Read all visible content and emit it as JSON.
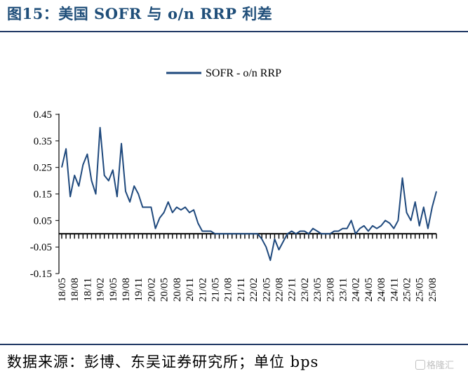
{
  "figure": {
    "title": "图15：美国 SOFR 与 o/n RRP 利差",
    "source": "数据来源：彭博、东吴证券研究所；单位 bps",
    "watermark": "格隆汇"
  },
  "colors": {
    "line": "#1f497d",
    "rule": "#1f3864",
    "title": "#1f4e79"
  },
  "chart_data": {
    "type": "line",
    "title": "",
    "xlabel": "",
    "ylabel": "",
    "legend_position": "top-center",
    "grid": false,
    "y_ticks": [
      "0.45",
      "0.35",
      "0.25",
      "0.15",
      "0.05",
      "-0.05",
      "-0.15"
    ],
    "ylim": [
      -0.15,
      0.45
    ],
    "x_tick_labels": [
      "18/05",
      "18/08",
      "18/11",
      "19/02",
      "19/05",
      "19/08",
      "19/11",
      "20/02",
      "20/05",
      "20/08",
      "20/11",
      "21/02",
      "21/05",
      "21/08",
      "21/11",
      "22/02",
      "22/05",
      "22/08",
      "22/11",
      "23/02",
      "23/05",
      "23/08",
      "23/11",
      "24/02",
      "24/05",
      "24/08",
      "24/11",
      "25/02",
      "25/05",
      "25/08"
    ],
    "series": [
      {
        "name": "SOFR - o/n RRP",
        "x": [
          "18/05",
          "18/06",
          "18/07",
          "18/08",
          "18/09",
          "18/10",
          "18/11",
          "18/12",
          "19/01",
          "19/02",
          "19/03",
          "19/04",
          "19/05",
          "19/06",
          "19/07",
          "19/08",
          "19/09",
          "19/10",
          "19/11",
          "19/12",
          "20/01",
          "20/02",
          "20/03",
          "20/04",
          "20/05",
          "20/06",
          "20/07",
          "20/08",
          "20/09",
          "20/10",
          "20/11",
          "20/12",
          "21/01",
          "21/02",
          "21/03",
          "21/04",
          "21/05",
          "21/06",
          "21/07",
          "21/08",
          "21/09",
          "21/10",
          "21/11",
          "21/12",
          "22/01",
          "22/02",
          "22/03",
          "22/04",
          "22/05",
          "22/06",
          "22/07",
          "22/08",
          "22/09",
          "22/10",
          "22/11",
          "22/12",
          "23/01",
          "23/02",
          "23/03",
          "23/04",
          "23/05",
          "23/06",
          "23/07",
          "23/08",
          "23/09",
          "23/10",
          "23/11",
          "23/12",
          "24/01",
          "24/02",
          "24/03",
          "24/04",
          "24/05",
          "24/06",
          "24/07",
          "24/08",
          "24/09",
          "24/10",
          "24/11",
          "24/12",
          "25/01",
          "25/02",
          "25/03",
          "25/04",
          "25/05",
          "25/06",
          "25/07",
          "25/08",
          "25/09"
        ],
        "values": [
          0.25,
          0.32,
          0.14,
          0.22,
          0.18,
          0.26,
          0.3,
          0.2,
          0.15,
          0.4,
          0.22,
          0.2,
          0.24,
          0.14,
          0.34,
          0.16,
          0.12,
          0.18,
          0.15,
          0.1,
          0.1,
          0.1,
          0.02,
          0.06,
          0.08,
          0.12,
          0.08,
          0.1,
          0.09,
          0.1,
          0.08,
          0.09,
          0.04,
          0.01,
          0.01,
          0.01,
          0.0,
          0.0,
          0.0,
          0.0,
          0.0,
          0.0,
          0.0,
          0.0,
          0.0,
          0.0,
          0.0,
          -0.02,
          -0.05,
          -0.1,
          -0.02,
          -0.06,
          -0.03,
          0.0,
          0.01,
          0.0,
          0.01,
          0.01,
          0.0,
          0.02,
          0.01,
          0.0,
          0.0,
          0.0,
          0.01,
          0.01,
          0.02,
          0.02,
          0.05,
          0.0,
          0.02,
          0.03,
          0.01,
          0.03,
          0.02,
          0.03,
          0.05,
          0.04,
          0.02,
          0.05,
          0.21,
          0.08,
          0.05,
          0.12,
          0.03,
          0.1,
          0.02,
          0.1,
          0.16
        ]
      }
    ]
  }
}
